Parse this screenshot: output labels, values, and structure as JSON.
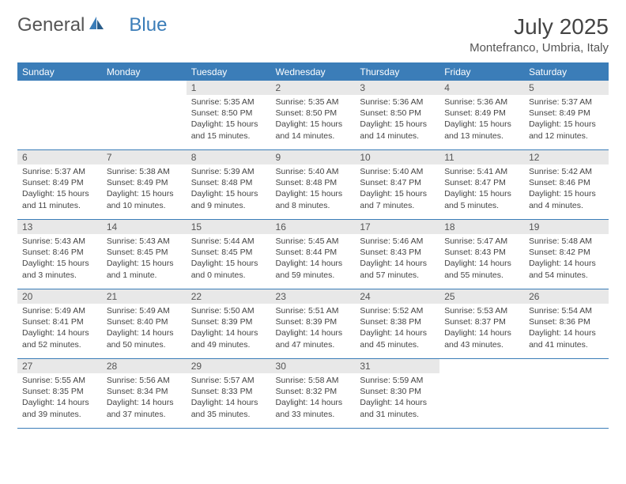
{
  "brand": {
    "name_part1": "General",
    "name_part2": "Blue"
  },
  "title": "July 2025",
  "location": "Montefranco, Umbria, Italy",
  "colors": {
    "header_bg": "#3b7db8",
    "header_text": "#ffffff",
    "daynum_bg": "#e8e8e8",
    "border": "#3b7db8",
    "text": "#444444"
  },
  "weekdays": [
    "Sunday",
    "Monday",
    "Tuesday",
    "Wednesday",
    "Thursday",
    "Friday",
    "Saturday"
  ],
  "first_weekday_index": 2,
  "days": [
    {
      "n": 1,
      "sunrise": "5:35 AM",
      "sunset": "8:50 PM",
      "daylight": "15 hours and 15 minutes."
    },
    {
      "n": 2,
      "sunrise": "5:35 AM",
      "sunset": "8:50 PM",
      "daylight": "15 hours and 14 minutes."
    },
    {
      "n": 3,
      "sunrise": "5:36 AM",
      "sunset": "8:50 PM",
      "daylight": "15 hours and 14 minutes."
    },
    {
      "n": 4,
      "sunrise": "5:36 AM",
      "sunset": "8:49 PM",
      "daylight": "15 hours and 13 minutes."
    },
    {
      "n": 5,
      "sunrise": "5:37 AM",
      "sunset": "8:49 PM",
      "daylight": "15 hours and 12 minutes."
    },
    {
      "n": 6,
      "sunrise": "5:37 AM",
      "sunset": "8:49 PM",
      "daylight": "15 hours and 11 minutes."
    },
    {
      "n": 7,
      "sunrise": "5:38 AM",
      "sunset": "8:49 PM",
      "daylight": "15 hours and 10 minutes."
    },
    {
      "n": 8,
      "sunrise": "5:39 AM",
      "sunset": "8:48 PM",
      "daylight": "15 hours and 9 minutes."
    },
    {
      "n": 9,
      "sunrise": "5:40 AM",
      "sunset": "8:48 PM",
      "daylight": "15 hours and 8 minutes."
    },
    {
      "n": 10,
      "sunrise": "5:40 AM",
      "sunset": "8:47 PM",
      "daylight": "15 hours and 7 minutes."
    },
    {
      "n": 11,
      "sunrise": "5:41 AM",
      "sunset": "8:47 PM",
      "daylight": "15 hours and 5 minutes."
    },
    {
      "n": 12,
      "sunrise": "5:42 AM",
      "sunset": "8:46 PM",
      "daylight": "15 hours and 4 minutes."
    },
    {
      "n": 13,
      "sunrise": "5:43 AM",
      "sunset": "8:46 PM",
      "daylight": "15 hours and 3 minutes."
    },
    {
      "n": 14,
      "sunrise": "5:43 AM",
      "sunset": "8:45 PM",
      "daylight": "15 hours and 1 minute."
    },
    {
      "n": 15,
      "sunrise": "5:44 AM",
      "sunset": "8:45 PM",
      "daylight": "15 hours and 0 minutes."
    },
    {
      "n": 16,
      "sunrise": "5:45 AM",
      "sunset": "8:44 PM",
      "daylight": "14 hours and 59 minutes."
    },
    {
      "n": 17,
      "sunrise": "5:46 AM",
      "sunset": "8:43 PM",
      "daylight": "14 hours and 57 minutes."
    },
    {
      "n": 18,
      "sunrise": "5:47 AM",
      "sunset": "8:43 PM",
      "daylight": "14 hours and 55 minutes."
    },
    {
      "n": 19,
      "sunrise": "5:48 AM",
      "sunset": "8:42 PM",
      "daylight": "14 hours and 54 minutes."
    },
    {
      "n": 20,
      "sunrise": "5:49 AM",
      "sunset": "8:41 PM",
      "daylight": "14 hours and 52 minutes."
    },
    {
      "n": 21,
      "sunrise": "5:49 AM",
      "sunset": "8:40 PM",
      "daylight": "14 hours and 50 minutes."
    },
    {
      "n": 22,
      "sunrise": "5:50 AM",
      "sunset": "8:39 PM",
      "daylight": "14 hours and 49 minutes."
    },
    {
      "n": 23,
      "sunrise": "5:51 AM",
      "sunset": "8:39 PM",
      "daylight": "14 hours and 47 minutes."
    },
    {
      "n": 24,
      "sunrise": "5:52 AM",
      "sunset": "8:38 PM",
      "daylight": "14 hours and 45 minutes."
    },
    {
      "n": 25,
      "sunrise": "5:53 AM",
      "sunset": "8:37 PM",
      "daylight": "14 hours and 43 minutes."
    },
    {
      "n": 26,
      "sunrise": "5:54 AM",
      "sunset": "8:36 PM",
      "daylight": "14 hours and 41 minutes."
    },
    {
      "n": 27,
      "sunrise": "5:55 AM",
      "sunset": "8:35 PM",
      "daylight": "14 hours and 39 minutes."
    },
    {
      "n": 28,
      "sunrise": "5:56 AM",
      "sunset": "8:34 PM",
      "daylight": "14 hours and 37 minutes."
    },
    {
      "n": 29,
      "sunrise": "5:57 AM",
      "sunset": "8:33 PM",
      "daylight": "14 hours and 35 minutes."
    },
    {
      "n": 30,
      "sunrise": "5:58 AM",
      "sunset": "8:32 PM",
      "daylight": "14 hours and 33 minutes."
    },
    {
      "n": 31,
      "sunrise": "5:59 AM",
      "sunset": "8:30 PM",
      "daylight": "14 hours and 31 minutes."
    }
  ],
  "labels": {
    "sunrise": "Sunrise:",
    "sunset": "Sunset:",
    "daylight": "Daylight:"
  }
}
